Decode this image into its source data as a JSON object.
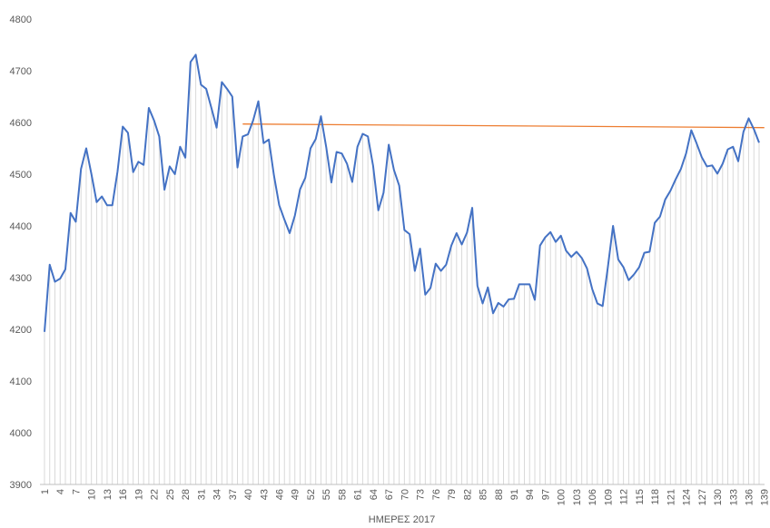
{
  "chart_data": {
    "type": "line",
    "title": "",
    "xlabel": "ΗΜΕΡΕΣ 2017",
    "ylabel": "",
    "ylim": [
      3900,
      4800
    ],
    "y_ticks": [
      3900,
      4000,
      4100,
      4200,
      4300,
      4400,
      4500,
      4600,
      4700,
      4800
    ],
    "x_tick_labels": [
      "1",
      "4",
      "7",
      "10",
      "13",
      "16",
      "19",
      "22",
      "25",
      "28",
      "31",
      "34",
      "37",
      "40",
      "43",
      "46",
      "49",
      "52",
      "55",
      "58",
      "61",
      "64",
      "67",
      "70",
      "73",
      "76",
      "79",
      "82",
      "85",
      "88",
      "91",
      "94",
      "97",
      "100",
      "103",
      "106",
      "109",
      "112",
      "115",
      "118",
      "121",
      "124",
      "127",
      "130",
      "133",
      "136",
      "139"
    ],
    "grid": false,
    "legend": "none",
    "colors": {
      "series": "#4472c4",
      "trend": "#ed7d31",
      "drop_lines": "#d9d9d9",
      "axis": "#bfbfbf"
    },
    "series": [
      {
        "values": [
          4195,
          4325,
          4292,
          4298,
          4316,
          4425,
          4408,
          4510,
          4550,
          4500,
          4446,
          4457,
          4440,
          4440,
          4505,
          4592,
          4580,
          4504,
          4524,
          4518,
          4628,
          4604,
          4573,
          4470,
          4515,
          4500,
          4553,
          4532,
          4717,
          4731,
          4673,
          4665,
          4628,
          4590,
          4678,
          4665,
          4650,
          4513,
          4573,
          4577,
          4604,
          4641,
          4560,
          4567,
          4497,
          4440,
          4412,
          4386,
          4420,
          4471,
          4493,
          4550,
          4568,
          4612,
          4553,
          4484,
          4543,
          4540,
          4520,
          4485,
          4553,
          4578,
          4573,
          4516,
          4430,
          4464,
          4557,
          4508,
          4478,
          4392,
          4384,
          4313,
          4356,
          4267,
          4280,
          4327,
          4313,
          4325,
          4362,
          4386,
          4364,
          4387,
          4435,
          4284,
          4250,
          4281,
          4231,
          4251,
          4244,
          4258,
          4259,
          4287,
          4287,
          4287,
          4257,
          4362,
          4378,
          4388,
          4369,
          4381,
          4352,
          4340,
          4350,
          4338,
          4318,
          4278,
          4250,
          4245,
          4320,
          4400,
          4335,
          4320,
          4295,
          4306,
          4320,
          4348,
          4350,
          4406,
          4418,
          4451,
          4468,
          4490,
          4510,
          4540,
          4585,
          4560,
          4533,
          4515,
          4517,
          4501,
          4520,
          4548,
          4553,
          4525,
          4582,
          4608,
          4587,
          4561
        ]
      },
      {
        "values_trend": {
          "from_day": 39,
          "to_day": 139,
          "start": 4597,
          "end": 4590
        }
      }
    ]
  }
}
